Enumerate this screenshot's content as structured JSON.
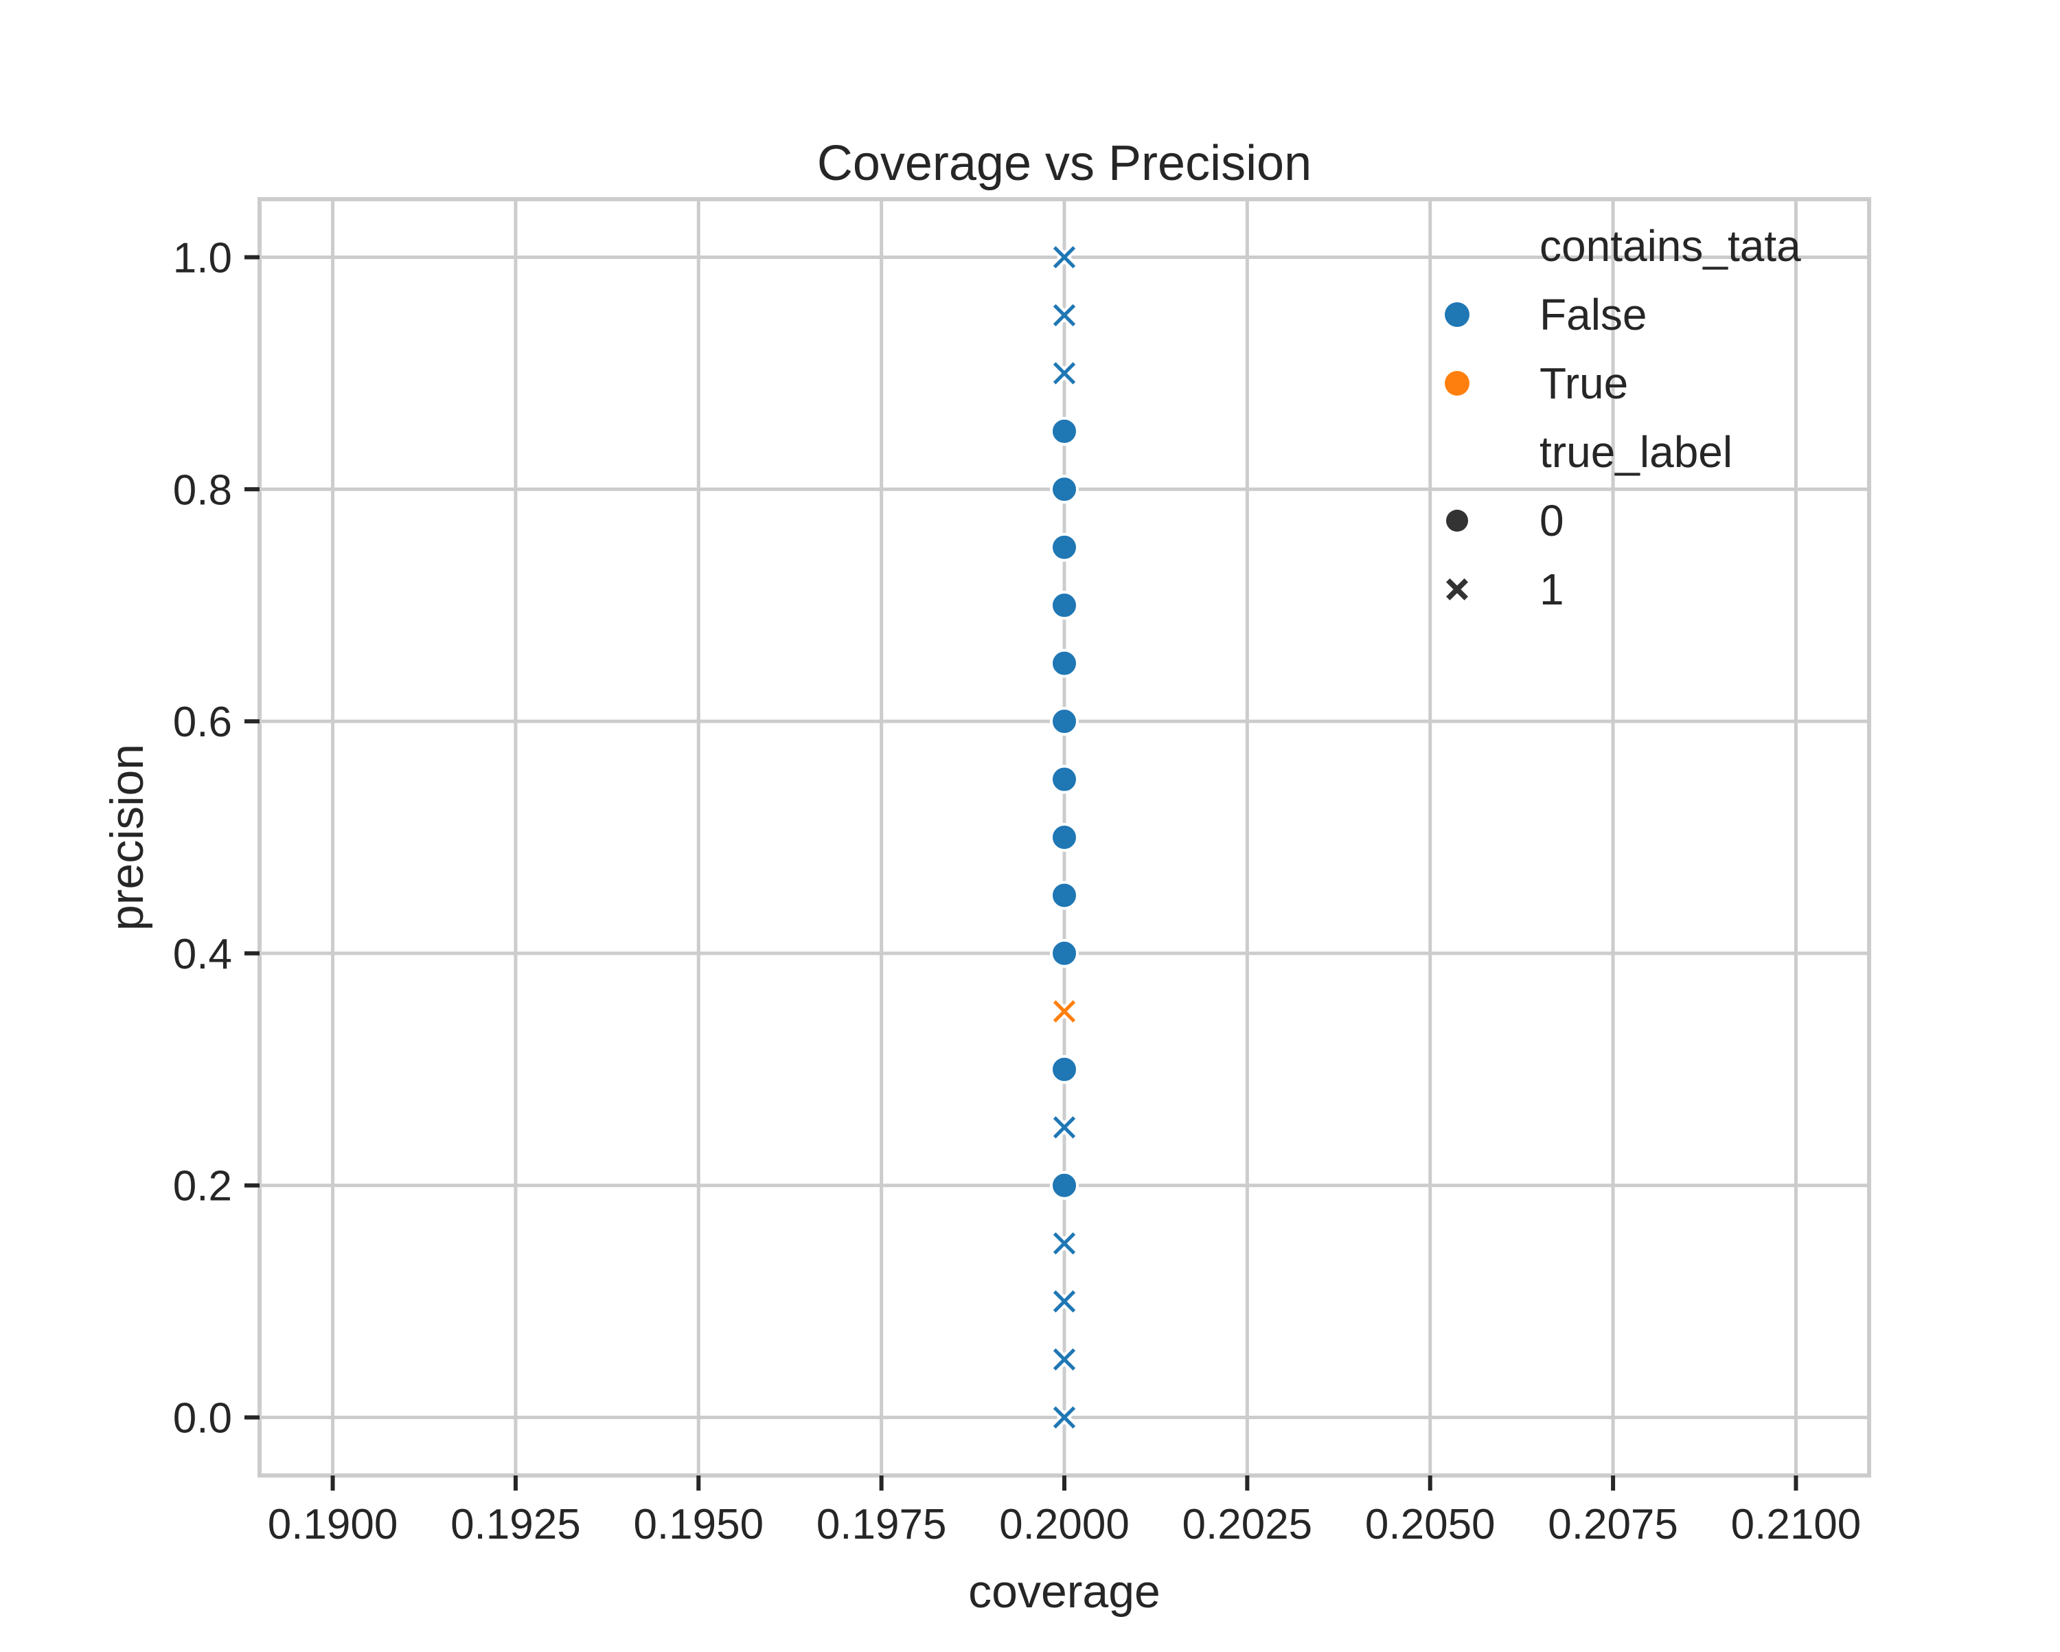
{
  "chart_data": {
    "type": "scatter",
    "title": "Coverage vs Precision",
    "xlabel": "coverage",
    "ylabel": "precision",
    "xlim": [
      0.189,
      0.211
    ],
    "ylim": [
      -0.05,
      1.05
    ],
    "xticks": [
      "0.1900",
      "0.1925",
      "0.1950",
      "0.1975",
      "0.2000",
      "0.2025",
      "0.2050",
      "0.2075",
      "0.2100"
    ],
    "yticks": [
      "0.0",
      "0.2",
      "0.4",
      "0.6",
      "0.8",
      "1.0"
    ],
    "grid": true,
    "legend": {
      "placement": "top-right",
      "hue_title": "contains_tata",
      "hue_entries": [
        {
          "label": "False",
          "color": "#1f77b4"
        },
        {
          "label": "True",
          "color": "#ff7f0e"
        }
      ],
      "style_title": "true_label",
      "style_entries": [
        {
          "label": "0",
          "marker": "circle"
        },
        {
          "label": "1",
          "marker": "x"
        }
      ]
    },
    "points": [
      {
        "x": 0.2,
        "y": 0.0,
        "contains_tata": "False",
        "true_label": "1"
      },
      {
        "x": 0.2,
        "y": 0.05,
        "contains_tata": "False",
        "true_label": "1"
      },
      {
        "x": 0.2,
        "y": 0.1,
        "contains_tata": "False",
        "true_label": "1"
      },
      {
        "x": 0.2,
        "y": 0.15,
        "contains_tata": "False",
        "true_label": "1"
      },
      {
        "x": 0.2,
        "y": 0.2,
        "contains_tata": "False",
        "true_label": "0"
      },
      {
        "x": 0.2,
        "y": 0.25,
        "contains_tata": "False",
        "true_label": "1"
      },
      {
        "x": 0.2,
        "y": 0.3,
        "contains_tata": "False",
        "true_label": "0"
      },
      {
        "x": 0.2,
        "y": 0.35,
        "contains_tata": "True",
        "true_label": "1"
      },
      {
        "x": 0.2,
        "y": 0.4,
        "contains_tata": "False",
        "true_label": "0"
      },
      {
        "x": 0.2,
        "y": 0.45,
        "contains_tata": "False",
        "true_label": "0"
      },
      {
        "x": 0.2,
        "y": 0.5,
        "contains_tata": "False",
        "true_label": "0"
      },
      {
        "x": 0.2,
        "y": 0.55,
        "contains_tata": "False",
        "true_label": "0"
      },
      {
        "x": 0.2,
        "y": 0.6,
        "contains_tata": "False",
        "true_label": "0"
      },
      {
        "x": 0.2,
        "y": 0.65,
        "contains_tata": "False",
        "true_label": "0"
      },
      {
        "x": 0.2,
        "y": 0.7,
        "contains_tata": "False",
        "true_label": "0"
      },
      {
        "x": 0.2,
        "y": 0.75,
        "contains_tata": "False",
        "true_label": "0"
      },
      {
        "x": 0.2,
        "y": 0.8,
        "contains_tata": "False",
        "true_label": "0"
      },
      {
        "x": 0.2,
        "y": 0.85,
        "contains_tata": "False",
        "true_label": "0"
      },
      {
        "x": 0.2,
        "y": 0.9,
        "contains_tata": "False",
        "true_label": "1"
      },
      {
        "x": 0.2,
        "y": 0.95,
        "contains_tata": "False",
        "true_label": "1"
      },
      {
        "x": 0.2,
        "y": 1.0,
        "contains_tata": "False",
        "true_label": "1"
      }
    ]
  }
}
